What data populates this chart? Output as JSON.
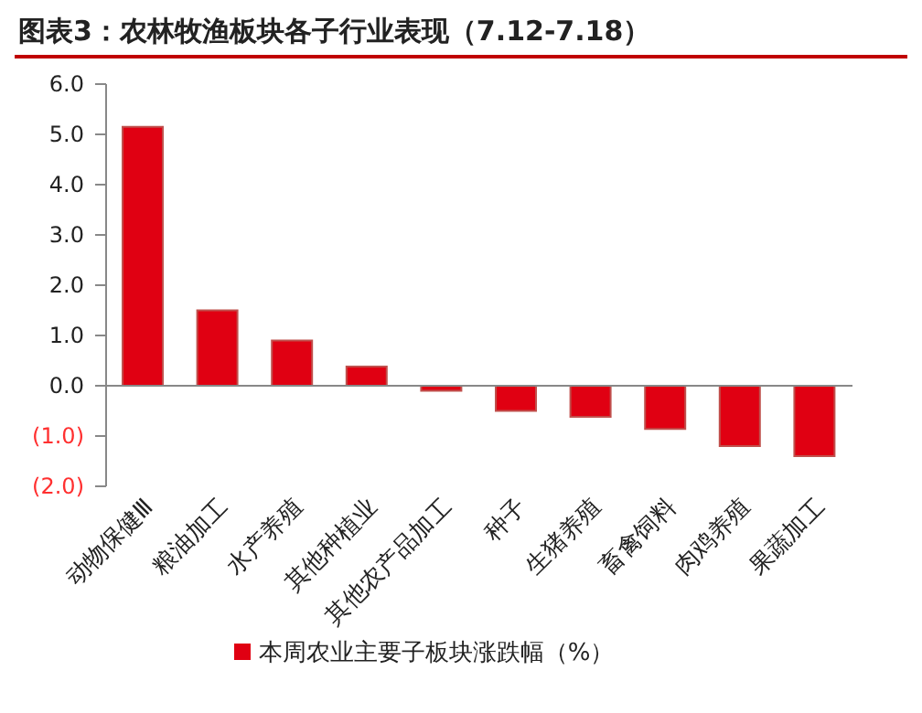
{
  "chart_data": {
    "type": "bar",
    "title": "图表3：农林牧渔板块各子行业表现（7.12-7.18）",
    "categories": [
      "动物保健Ⅲ",
      "粮油加工",
      "水产养殖",
      "其他种植业",
      "其他农产品加工",
      "种子",
      "生猪养殖",
      "畜禽饲料",
      "肉鸡养殖",
      "果蔬加工"
    ],
    "series": [
      {
        "name": "本周农业主要子板块涨跌幅（%）",
        "color": "#e00012",
        "values": [
          5.15,
          1.5,
          0.9,
          0.38,
          -0.1,
          -0.5,
          -0.62,
          -0.86,
          -1.2,
          -1.4
        ]
      }
    ],
    "ylim": [
      -2,
      6
    ],
    "yticks": [
      {
        "value": -2,
        "label": "(2.0)"
      },
      {
        "value": -1,
        "label": "(1.0)"
      },
      {
        "value": 0,
        "label": "0.0"
      },
      {
        "value": 1,
        "label": "1.0"
      },
      {
        "value": 2,
        "label": "2.0"
      },
      {
        "value": 3,
        "label": "3.0"
      },
      {
        "value": 4,
        "label": "4.0"
      },
      {
        "value": 5,
        "label": "5.0"
      },
      {
        "value": 6,
        "label": "6.0"
      }
    ],
    "legend": "bottom"
  }
}
